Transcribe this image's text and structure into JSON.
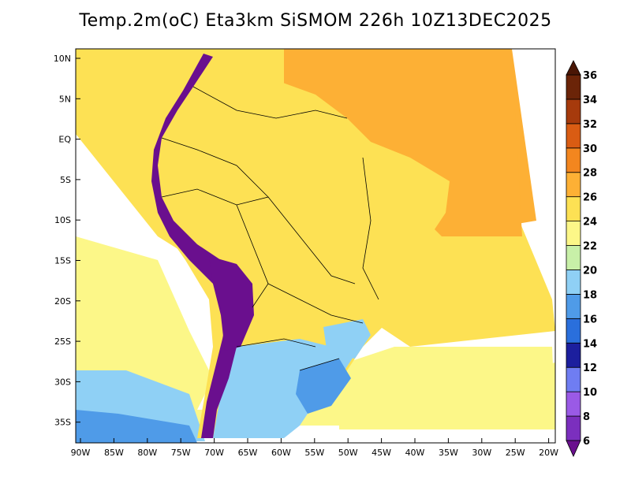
{
  "title": "Temp.2m(oC) Eta3km SiSMOM 226h 10Z13DEC2025",
  "lat_labels": [
    "10N",
    "5N",
    "EQ",
    "5S",
    "10S",
    "15S",
    "20S",
    "25S",
    "30S",
    "35S"
  ],
  "lon_labels": [
    "90W",
    "85W",
    "80W",
    "75W",
    "70W",
    "65W",
    "60W",
    "55W",
    "50W",
    "45W",
    "40W",
    "35W",
    "30W",
    "25W",
    "20W"
  ],
  "colorbar": {
    "levels": [
      "6",
      "8",
      "10",
      "12",
      "14",
      "16",
      "18",
      "20",
      "22",
      "24",
      "26",
      "28",
      "30",
      "32",
      "34",
      "36"
    ],
    "colors": [
      "#6a0f8e",
      "#7b2fbe",
      "#9a5ae6",
      "#6f7df2",
      "#1c1f9e",
      "#2a6fdc",
      "#4f9be8",
      "#8fd0f5",
      "#c8f0a8",
      "#fcf788",
      "#fde154",
      "#fdb035",
      "#f3861f",
      "#d95c13",
      "#a63a0c",
      "#6b2408",
      "#4a1605"
    ]
  },
  "map_colors": {
    "ocean_warm": "#fdb035",
    "ocean_mid": "#fde154",
    "ocean_cool": "#fcf788",
    "ocean_cold": "#8fd0f5",
    "ocean_colder": "#4f9be8",
    "land": "#fde154",
    "andes": "#6a0f8e"
  }
}
